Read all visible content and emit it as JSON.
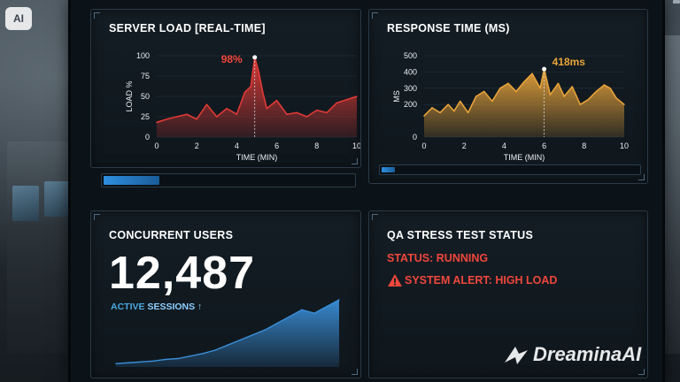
{
  "badge": "AI",
  "watermark": "DreaminaAI",
  "server_load": {
    "title": "SERVER LOAD [REAL-TIME]",
    "peak_label": "98%",
    "progress": 0.22,
    "color": "#e03a36"
  },
  "response_time": {
    "title": "RESPONSE TIME (MS)",
    "peak_label": "418ms",
    "progress": 0.05,
    "color": "#e8a33a"
  },
  "concurrent_users": {
    "title": "CONCURRENT USERS",
    "value": "12,487",
    "sessions_prefix": "ACTIVE",
    "sessions_word": "SESSIONS",
    "arrow": "↑",
    "color": "#3a8fd8"
  },
  "qa_status": {
    "title": "QA STRESS TEST STATUS",
    "status": "STATUS: RUNNING",
    "alert": "SYSTEM ALERT: HIGH LOAD",
    "alert_icon": "warning-icon",
    "color": "#f0473c"
  },
  "chart_data": [
    {
      "type": "area",
      "title": "SERVER LOAD [REAL-TIME]",
      "xlabel": "TIME (MIN)",
      "ylabel": "LOAD %",
      "xlim": [
        0,
        10
      ],
      "ylim": [
        0,
        100
      ],
      "xticks": [
        0,
        2,
        4,
        6,
        8,
        10
      ],
      "yticks": [
        0,
        25,
        50,
        75,
        100
      ],
      "annotation": {
        "x": 4.9,
        "y": 98,
        "label": "98%"
      },
      "x": [
        0,
        0.5,
        1,
        1.5,
        2,
        2.5,
        3,
        3.5,
        4,
        4.4,
        4.7,
        4.9,
        5.1,
        5.3,
        5.5,
        6,
        6.5,
        7,
        7.5,
        8,
        8.5,
        9,
        9.5,
        10
      ],
      "y": [
        18,
        22,
        25,
        28,
        22,
        40,
        25,
        35,
        28,
        55,
        62,
        98,
        80,
        55,
        35,
        45,
        28,
        30,
        25,
        33,
        30,
        42,
        46,
        50
      ]
    },
    {
      "type": "area",
      "title": "RESPONSE TIME (MS)",
      "xlabel": "TIME (MIN)",
      "ylabel": "MS",
      "xlim": [
        0,
        10
      ],
      "ylim": [
        0,
        500
      ],
      "xticks": [
        0,
        2,
        4,
        6,
        8,
        10
      ],
      "yticks": [
        0,
        200,
        300,
        400,
        500
      ],
      "annotation": {
        "x": 6,
        "y": 418,
        "label": "418ms"
      },
      "x": [
        0,
        0.4,
        0.8,
        1.2,
        1.5,
        1.8,
        2.2,
        2.6,
        3,
        3.4,
        3.8,
        4.2,
        4.6,
        5,
        5.4,
        5.8,
        6,
        6.3,
        6.7,
        7,
        7.4,
        7.8,
        8.2,
        8.6,
        9,
        9.3,
        9.6,
        10
      ],
      "y": [
        130,
        180,
        150,
        200,
        160,
        220,
        150,
        250,
        280,
        220,
        300,
        330,
        280,
        340,
        390,
        300,
        418,
        260,
        330,
        250,
        310,
        200,
        230,
        280,
        320,
        300,
        240,
        200
      ]
    },
    {
      "type": "area",
      "title": "CONCURRENT USERS",
      "x": [
        0,
        1,
        2,
        3,
        4,
        5,
        6,
        7,
        8,
        9,
        10,
        11,
        12,
        13,
        14,
        15,
        16,
        17,
        18
      ],
      "y": [
        2,
        2.5,
        3,
        3.5,
        4.5,
        5,
        6.5,
        8,
        10,
        13,
        16,
        19,
        22,
        26,
        30,
        34,
        32,
        36,
        40
      ]
    }
  ]
}
